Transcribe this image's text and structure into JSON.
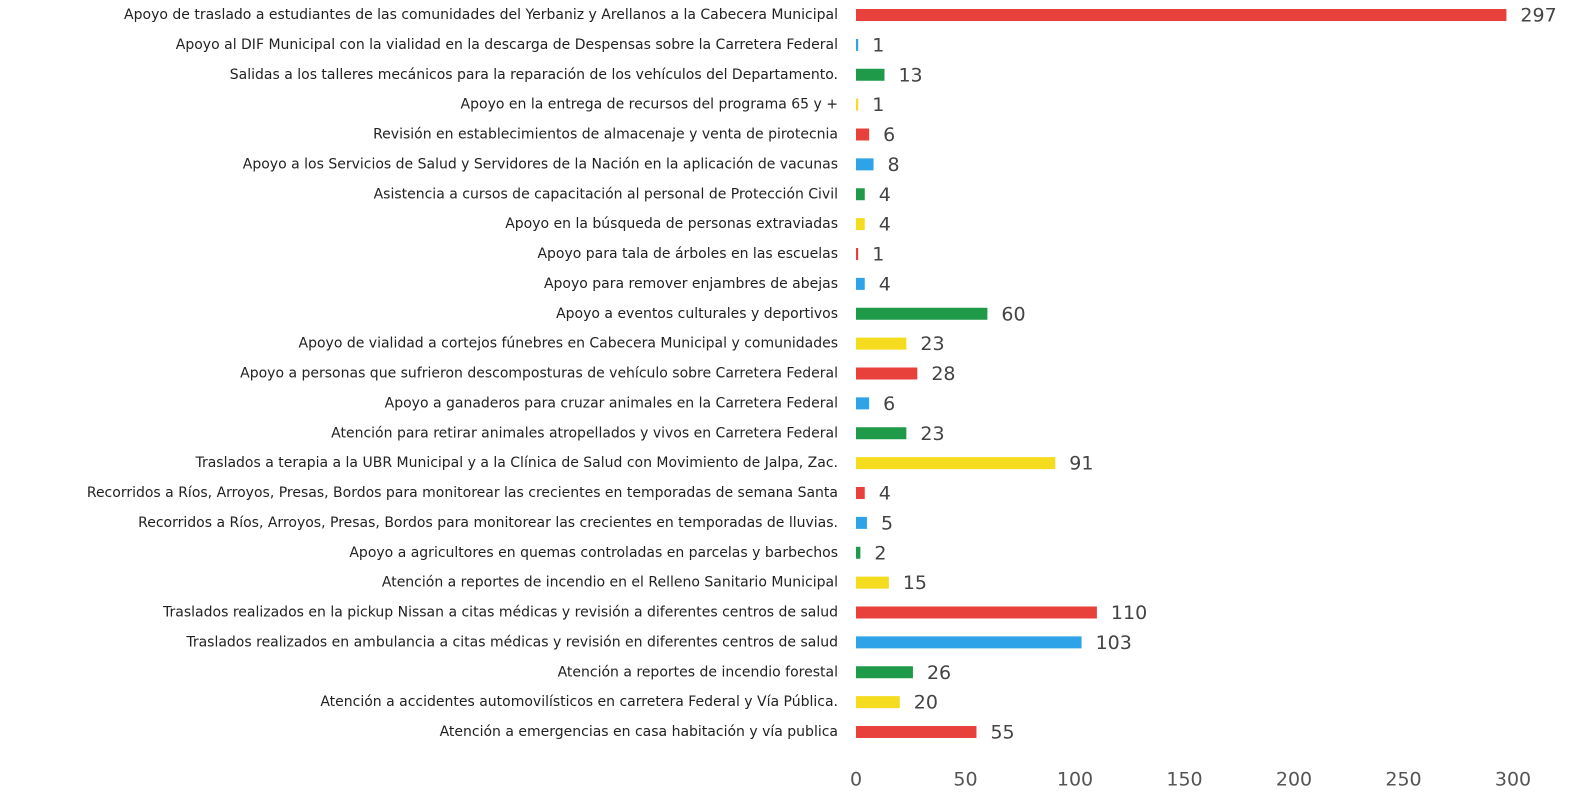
{
  "chart_data": {
    "type": "barh",
    "categories": [
      "Apoyo de traslado a estudiantes de las comunidades del Yerbaniz y Arellanos a la Cabecera Municipal",
      "Apoyo al DIF Municipal con la vialidad en la descarga de Despensas sobre la Carretera Federal",
      "Salidas a los talleres mecánicos para la reparación de los vehículos del Departamento.",
      "Apoyo en la entrega de recursos del programa 65 y +",
      "Revisión en establecimientos de almacenaje y venta de pirotecnia",
      "Apoyo a los Servicios de Salud y Servidores de la Nación en la aplicación de vacunas",
      "Asistencia a cursos de capacitación al personal de Protección Civil",
      "Apoyo en la búsqueda de personas extraviadas",
      "Apoyo para tala de árboles en las escuelas",
      "Apoyo para remover enjambres de abejas",
      "Apoyo a eventos culturales y deportivos",
      "Apoyo de vialidad a cortejos fúnebres en Cabecera Municipal y comunidades",
      "Apoyo a personas que sufrieron descomposturas de vehículo sobre Carretera Federal",
      "Apoyo a ganaderos para cruzar animales en la Carretera Federal",
      "Atención para retirar animales atropellados y vivos en Carretera Federal",
      "Traslados a terapia a la UBR Municipal y a la Clínica de Salud con Movimiento de Jalpa, Zac.",
      "Recorridos a Ríos, Arroyos, Presas, Bordos para monitorear las crecientes en temporadas de semana Santa",
      "Recorridos a Ríos, Arroyos, Presas, Bordos para monitorear las crecientes en temporadas de lluvias.",
      "Apoyo a agricultores en quemas controladas en parcelas y barbechos",
      "Atención a reportes de incendio en el Relleno Sanitario Municipal",
      "Traslados realizados en la pickup Nissan a citas médicas y revisión a diferentes centros de salud",
      "Traslados realizados en ambulancia a citas médicas y revisión en diferentes centros de salud",
      "Atención a reportes de incendio forestal",
      "Atención a accidentes automovilísticos en carretera Federal y Vía Pública.",
      "Atención a emergencias en casa habitación y vía publica"
    ],
    "values": [
      297,
      1,
      13,
      1,
      6,
      8,
      4,
      4,
      1,
      4,
      60,
      23,
      28,
      6,
      23,
      91,
      4,
      5,
      2,
      15,
      110,
      103,
      26,
      20,
      55
    ],
    "colors": [
      "#e8403a",
      "#2ea3e8",
      "#1f9a48",
      "#f5dc1e"
    ],
    "xlim": [
      0,
      300
    ],
    "xticks": [
      0,
      50,
      100,
      150,
      200,
      250,
      300
    ],
    "grid": false
  }
}
